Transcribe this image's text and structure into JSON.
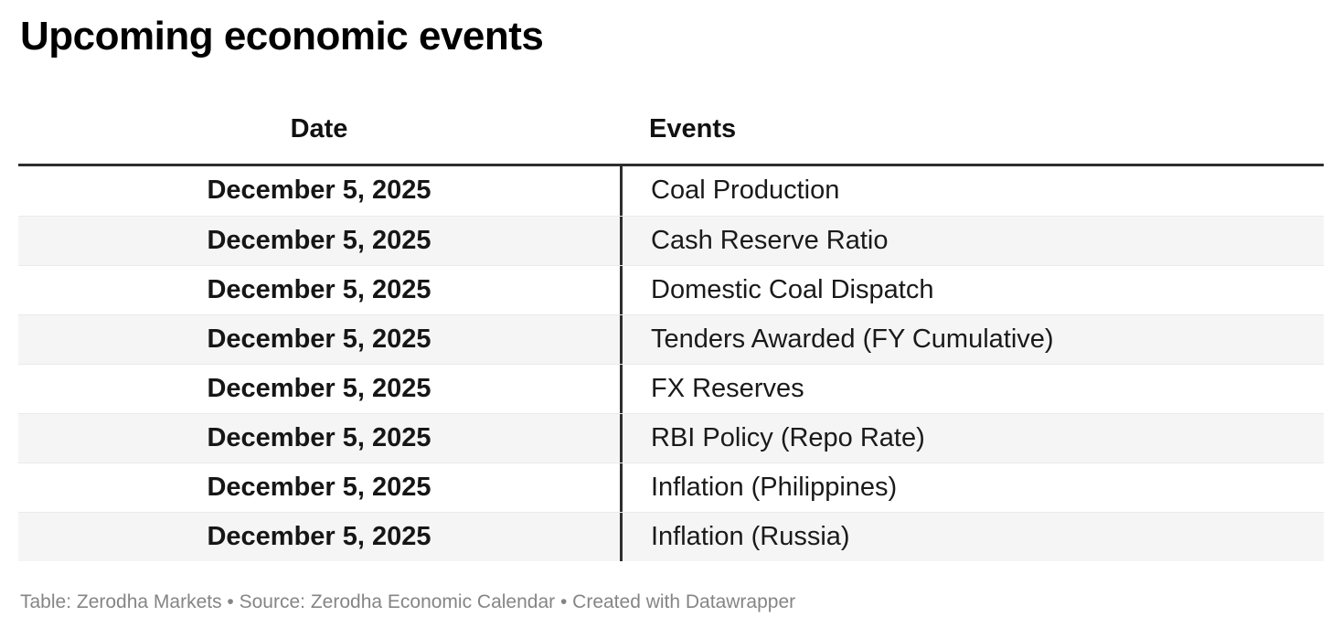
{
  "title": "Upcoming economic events",
  "table": {
    "columns": [
      {
        "label": "Date"
      },
      {
        "label": "Events"
      }
    ],
    "rows": [
      {
        "date": "December 5, 2025",
        "event": "Coal Production"
      },
      {
        "date": "December 5, 2025",
        "event": "Cash Reserve Ratio"
      },
      {
        "date": "December 5, 2025",
        "event": "Domestic Coal Dispatch"
      },
      {
        "date": "December 5, 2025",
        "event": "Tenders Awarded (FY Cumulative)"
      },
      {
        "date": "December 5, 2025",
        "event": "FX Reserves"
      },
      {
        "date": "December 5, 2025",
        "event": "RBI Policy (Repo Rate)"
      },
      {
        "date": "December 5, 2025",
        "event": "Inflation (Philippines)"
      },
      {
        "date": "December 5, 2025",
        "event": "Inflation (Russia)"
      }
    ]
  },
  "footer": {
    "text": "Table: Zerodha Markets • Source: Zerodha Economic Calendar • Created with Datawrapper"
  },
  "colors": {
    "header_rule": "#2e2e2e",
    "column_divider": "#2e2e2e",
    "row_alt_background": "#f5f5f5",
    "row_separator": "#eaeaea",
    "footer_text": "#858585",
    "title_text": "#000000",
    "cell_text": "#1a1a1a"
  },
  "chart_data": {
    "type": "table",
    "title": "Upcoming economic events",
    "columns": [
      "Date",
      "Events"
    ],
    "rows": [
      [
        "December 5, 2025",
        "Coal Production"
      ],
      [
        "December 5, 2025",
        "Cash Reserve Ratio"
      ],
      [
        "December 5, 2025",
        "Domestic Coal Dispatch"
      ],
      [
        "December 5, 2025",
        "Tenders Awarded (FY Cumulative)"
      ],
      [
        "December 5, 2025",
        "FX Reserves"
      ],
      [
        "December 5, 2025",
        "RBI Policy (Repo Rate)"
      ],
      [
        "December 5, 2025",
        "Inflation (Philippines)"
      ],
      [
        "December 5, 2025",
        "Inflation (Russia)"
      ]
    ],
    "layout_hints": {
      "date_column_align": "center",
      "events_column_align": "left",
      "alternating_row_shading": true,
      "thick_rule_below_header": true,
      "vertical_divider_between_columns": true
    }
  }
}
